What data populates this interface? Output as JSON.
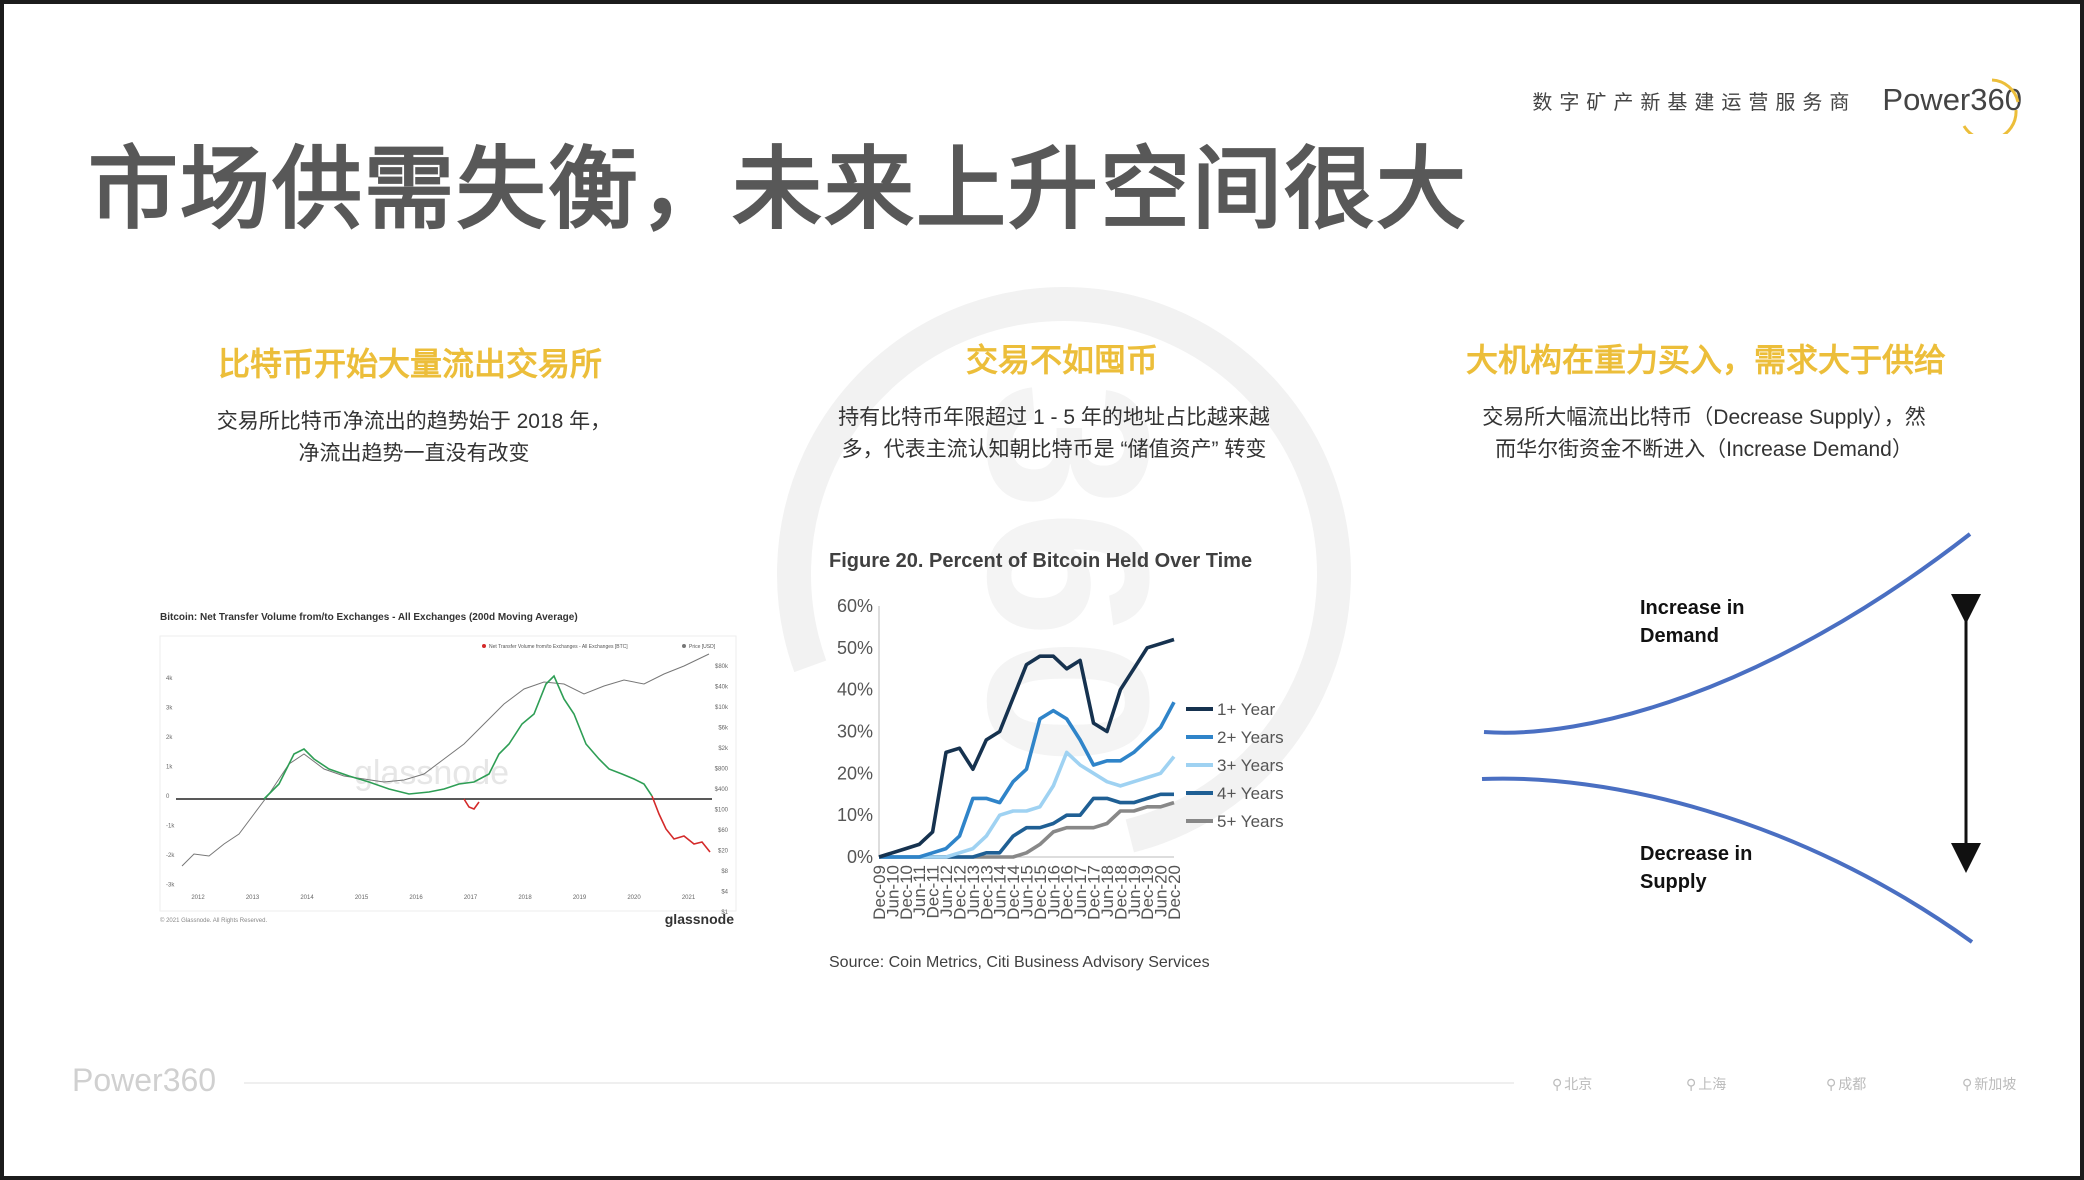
{
  "header": {
    "title": "市场供需失衡，未来上升空间很大",
    "brand_tagline": "数字矿产新基建运营服务商",
    "brand_logo_text": "Power",
    "brand_logo_number": "360"
  },
  "columns": [
    {
      "title": "比特币开始大量流出交易所",
      "subtitle_lines": [
        "交易所比特币净流出的趋势始于 2018 年，",
        "净流出趋势一直没有改变"
      ]
    },
    {
      "title": "交易不如囤币",
      "subtitle_lines": [
        "持有比特币年限超过 1 - 5 年的地址占比越来越",
        "多，代表主流认知朝比特币是 “储值资产” 转变"
      ]
    },
    {
      "title": "大机构在重力买入，需求大于供给",
      "subtitle_lines": [
        "交易所大幅流出比特币（Decrease Supply），然",
        "而华尔街资金不断进入（Increase Demand）"
      ]
    }
  ],
  "glassnode_chart": {
    "title": "Bitcoin: Net Transfer Volume from/to Exchanges - All Exchanges (200d Moving Average)",
    "legend": [
      "Net Transfer Volume from/to Exchanges - All Exchanges [BTC]",
      "Price [USD]"
    ],
    "left_ticks": [
      "4k",
      "3k",
      "2k",
      "1k",
      "0",
      "-1k",
      "-2k",
      "-3k"
    ],
    "right_ticks": [
      "$80k",
      "$40k",
      "$10k",
      "$6k",
      "$2k",
      "$800",
      "$400",
      "$100",
      "$60",
      "$20",
      "$8",
      "$4",
      "$1"
    ],
    "x_ticks": [
      "2012",
      "2013",
      "2014",
      "2015",
      "2016",
      "2017",
      "2018",
      "2019",
      "2020",
      "2021"
    ],
    "watermark": "glassnode",
    "copyright": "© 2021 Glassnode. All Rights Reserved.",
    "brand": "glassnode",
    "colors": {
      "positive": "#2e9e55",
      "negative": "#d42a2a",
      "price": "#777777"
    }
  },
  "chart_data": {
    "type": "line",
    "title": "Figure 20. Percent of Bitcoin Held Over Time",
    "source": "Source: Coin Metrics, Citi Business Advisory Services",
    "x": [
      "Dec-09",
      "Jun-10",
      "Dec-10",
      "Jun-11",
      "Dec-11",
      "Jun-12",
      "Dec-12",
      "Jun-13",
      "Dec-13",
      "Jun-14",
      "Dec-14",
      "Jun-15",
      "Dec-15",
      "Jun-16",
      "Dec-16",
      "Jun-17",
      "Dec-17",
      "Jun-18",
      "Dec-18",
      "Jun-19",
      "Dec-19",
      "Jun-20",
      "Dec-20"
    ],
    "ylim": [
      0,
      60
    ],
    "yticks": [
      "0%",
      "10%",
      "20%",
      "30%",
      "40%",
      "50%",
      "60%"
    ],
    "series": [
      {
        "name": "1+ Year",
        "color": "#16324f",
        "values": [
          0,
          1,
          2,
          3,
          6,
          25,
          26,
          21,
          28,
          30,
          38,
          46,
          48,
          48,
          45,
          47,
          32,
          30,
          40,
          45,
          50,
          51,
          52
        ]
      },
      {
        "name": "2+ Years",
        "color": "#2f84c9",
        "values": [
          0,
          0,
          0,
          0,
          1,
          2,
          5,
          14,
          14,
          13,
          18,
          21,
          33,
          35,
          33,
          28,
          22,
          23,
          23,
          25,
          28,
          31,
          37
        ]
      },
      {
        "name": "3+ Years",
        "color": "#9fd2f2",
        "values": [
          0,
          0,
          0,
          0,
          0,
          0,
          1,
          2,
          5,
          10,
          11,
          11,
          12,
          17,
          25,
          22,
          20,
          18,
          17,
          18,
          19,
          20,
          24
        ]
      },
      {
        "name": "4+ Years",
        "color": "#1f5f94",
        "values": [
          0,
          0,
          0,
          0,
          0,
          0,
          0,
          0,
          1,
          1,
          5,
          7,
          7,
          8,
          10,
          10,
          14,
          14,
          13,
          13,
          14,
          15,
          15
        ]
      },
      {
        "name": "5+ Years",
        "color": "#888888",
        "values": [
          0,
          0,
          0,
          0,
          0,
          0,
          0,
          0,
          0,
          0,
          0,
          1,
          3,
          6,
          7,
          7,
          7,
          8,
          11,
          11,
          12,
          12,
          13
        ]
      }
    ]
  },
  "supply_demand": {
    "demand_label_1": "Increase in",
    "demand_label_2": "Demand",
    "supply_label_1": "Decrease in",
    "supply_label_2": "Supply",
    "line_color": "#4a6fc2"
  },
  "footer": {
    "logo_text": "Power",
    "logo_number": "360",
    "locations": [
      "北京",
      "上海",
      "成都",
      "新加坡"
    ]
  }
}
